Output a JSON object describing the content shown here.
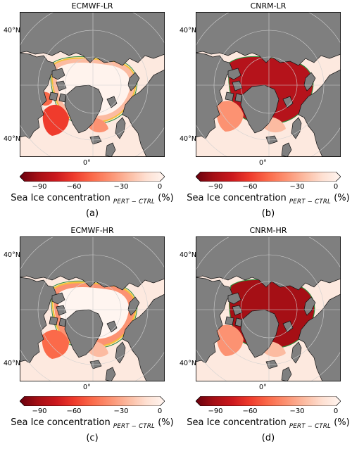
{
  "figure": {
    "colorbar": {
      "ticks": [
        "−90",
        "−60",
        "−30",
        "0"
      ],
      "tick_values": [
        -90,
        -60,
        -30,
        0
      ],
      "vmin": -100,
      "vmax": 0,
      "extend": "both",
      "label_main": "Sea Ice concentration",
      "label_sub": "PERT − CTRL",
      "label_unit": "(%)",
      "colors": [
        "#67000d",
        "#a50f15",
        "#cb181d",
        "#ef3b2c",
        "#fb6a4a",
        "#fc9272",
        "#fcbba1",
        "#fee0d2",
        "#fff5f0"
      ]
    },
    "map": {
      "lat_label_top": "40°N",
      "lat_label_bottom": "40°N",
      "lon_label": "0°",
      "land_color": "#7f7f7f",
      "ocean_color": "#fde9df"
    },
    "panels": [
      {
        "title": "ECMWF-LR",
        "label": "(a)",
        "ice_change_percent": -30
      },
      {
        "title": "CNRM-LR",
        "label": "(b)",
        "ice_change_percent": -90
      },
      {
        "title": "ECMWF-HR",
        "label": "(c)",
        "ice_change_percent": -30
      },
      {
        "title": "CNRM-HR",
        "label": "(d)",
        "ice_change_percent": -90
      }
    ]
  }
}
